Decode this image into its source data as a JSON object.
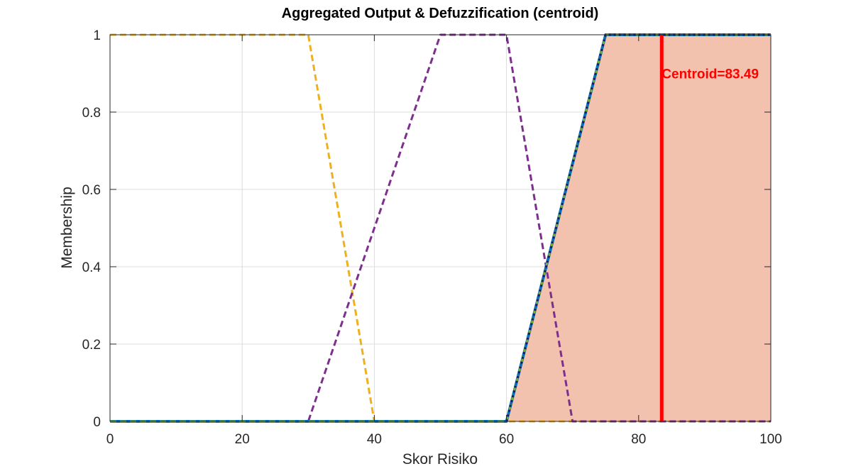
{
  "chart_data": {
    "type": "line",
    "title": "Aggregated Output & Defuzzification (centroid)",
    "xlabel": "Skor Risiko",
    "ylabel": "Membership",
    "xlim": [
      0,
      100
    ],
    "ylim": [
      0,
      1
    ],
    "xticks": [
      0,
      20,
      40,
      60,
      80,
      100
    ],
    "yticks": [
      0,
      0.2,
      0.4,
      0.6,
      0.8,
      1
    ],
    "ytick_labels": [
      "0",
      "0.2",
      "0.4",
      "0.6",
      "0.8",
      "1"
    ],
    "grid": true,
    "legend": "none",
    "series": [
      {
        "style": "dashed",
        "color": "#edb120",
        "x": [
          0,
          30,
          40,
          100
        ],
        "y": [
          1,
          1,
          0,
          0
        ]
      },
      {
        "style": "dashed",
        "color": "#7e2f8e",
        "x": [
          0,
          30,
          50,
          60,
          70,
          100
        ],
        "y": [
          0,
          0,
          1,
          1,
          0,
          0
        ]
      },
      {
        "style": "solid",
        "color": "#0072bd",
        "x": [
          0,
          60,
          75,
          100
        ],
        "y": [
          0,
          0,
          1,
          1
        ]
      },
      {
        "style": "dashed",
        "color": "#77ac30",
        "x": [
          0,
          60,
          75,
          100
        ],
        "y": [
          0,
          0,
          1,
          1
        ]
      },
      {
        "style": "dotted",
        "color": "#1a1a6e",
        "x": [
          60,
          75,
          100
        ],
        "y": [
          0,
          1,
          1
        ]
      }
    ],
    "aggregated": {
      "fill_color": "#f2c2ae",
      "x": [
        60,
        75,
        100,
        100
      ],
      "y": [
        0,
        1,
        1,
        0
      ]
    },
    "centroid": {
      "x": 83.49,
      "color": "#ff0000",
      "label": "Centroid=83.49"
    }
  }
}
